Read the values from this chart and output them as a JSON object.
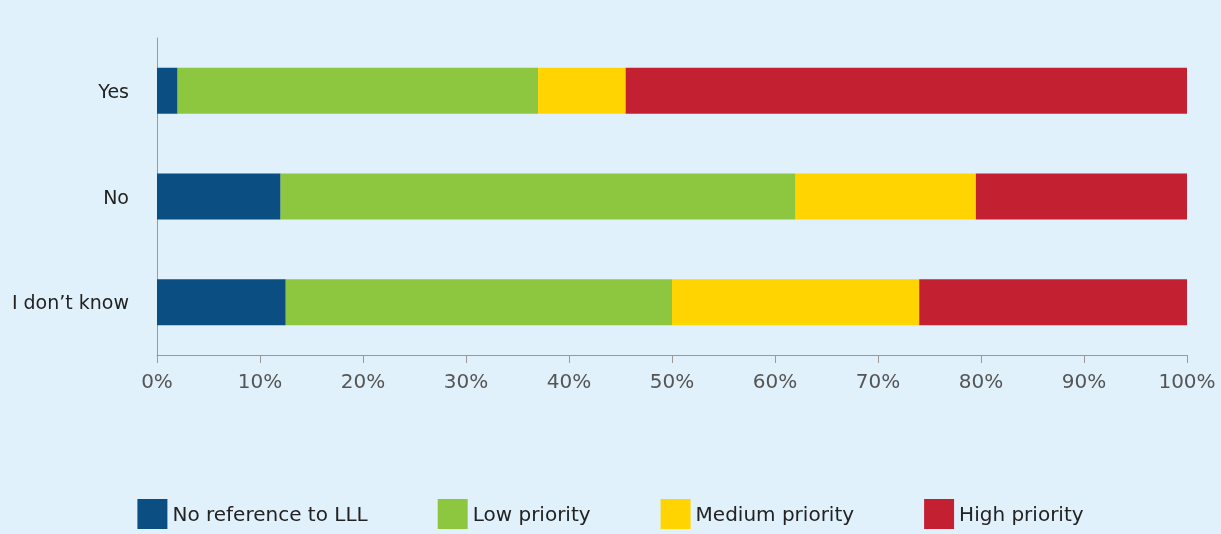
{
  "chart_data": {
    "type": "bar",
    "orientation": "horizontal",
    "stacked": true,
    "categories": [
      "Yes",
      "No",
      "I don’t know"
    ],
    "series": [
      {
        "name": "No reference to LLL",
        "color": "#0b4f82",
        "values": [
          2,
          12,
          12.5
        ]
      },
      {
        "name": "Low priority",
        "color": "#8dc63f",
        "values": [
          35,
          50,
          37.5
        ]
      },
      {
        "name": "Medium priority",
        "color": "#ffd400",
        "values": [
          8.5,
          17.5,
          24
        ]
      },
      {
        "name": "High priority",
        "color": "#c32032",
        "values": [
          54.5,
          20.5,
          26
        ]
      }
    ],
    "xlim": [
      0,
      100
    ],
    "xticks": [
      {
        "value": 0,
        "label": "0%"
      },
      {
        "value": 10,
        "label": "10%"
      },
      {
        "value": 20,
        "label": "20%"
      },
      {
        "value": 30,
        "label": "30%"
      },
      {
        "value": 40,
        "label": "40%"
      },
      {
        "value": 50,
        "label": "50%"
      },
      {
        "value": 60,
        "label": "60%"
      },
      {
        "value": 70,
        "label": "70%"
      },
      {
        "value": 80,
        "label": "80%"
      },
      {
        "value": 90,
        "label": "90%"
      },
      {
        "value": 100,
        "label": "100%"
      }
    ],
    "grid": false,
    "legend": "bottom"
  }
}
